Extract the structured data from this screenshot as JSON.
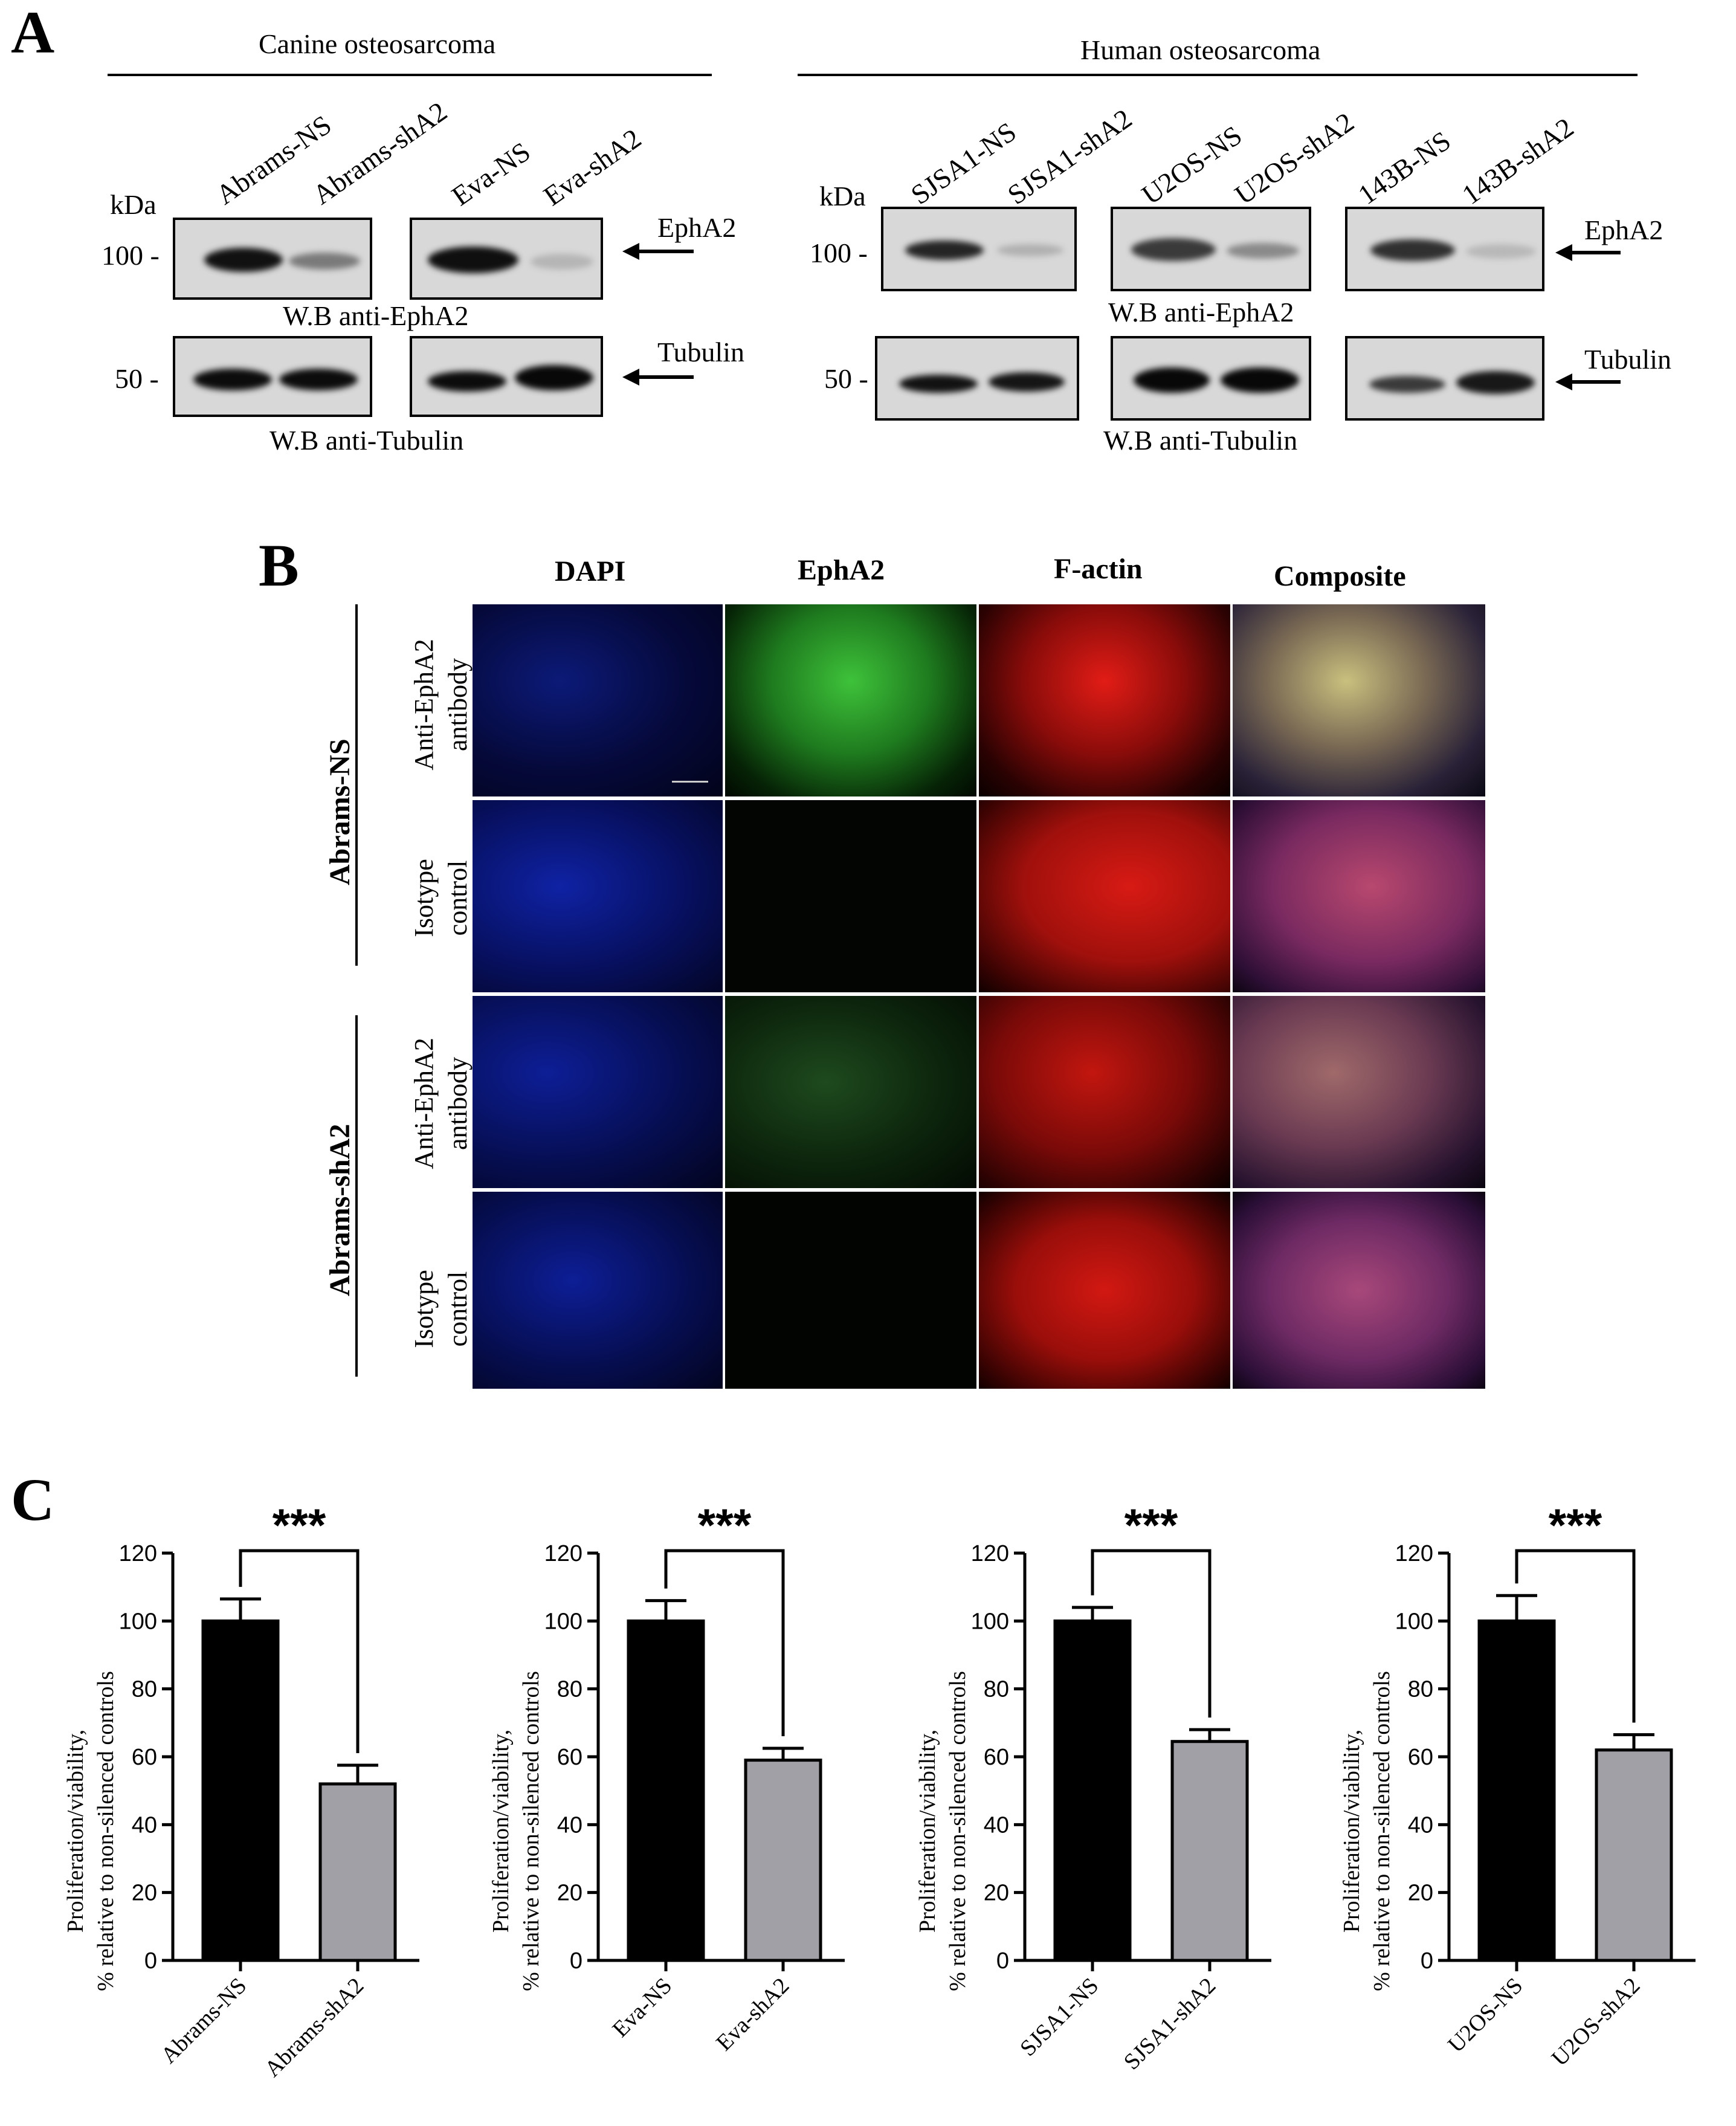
{
  "panel_a": {
    "letter": "A",
    "canine_header": "Canine osteosarcoma",
    "human_header": "Human osteosarcoma",
    "kda_label": "kDa",
    "mw_100": "100 -",
    "mw_50": "50 -",
    "lanes_canine": [
      "Abrams-NS",
      "Abrams-shA2",
      "Eva-NS",
      "Eva-shA2"
    ],
    "lanes_human": [
      "SJSA1-NS",
      "SJSA1-shA2",
      "U2OS-NS",
      "U2OS-shA2",
      "143B-NS",
      "143B-shA2"
    ],
    "epha2_label": "EphA2",
    "tubulin_label": "Tubulin",
    "wb_epha2": "W.B anti-EphA2",
    "wb_tubulin": "W.B anti-Tubulin"
  },
  "panel_b": {
    "letter": "B",
    "columns": [
      "DAPI",
      "EphA2",
      "F-actin",
      "Composite"
    ],
    "groups": [
      "Abrams-NS",
      "Abrams-shA2"
    ],
    "rows": [
      {
        "line1": "Anti-EphA2",
        "line2": "antibody"
      },
      {
        "line1": "Isotype",
        "line2": "control"
      },
      {
        "line1": "Anti-EphA2",
        "line2": "antibody"
      },
      {
        "line1": "Isotype",
        "line2": "control"
      }
    ]
  },
  "panel_c": {
    "letter": "C",
    "ylabel_line1": "Proliferation/viability,",
    "ylabel_line2": "% relative to non-silenced controls",
    "significance": "***"
  },
  "chart_data": [
    {
      "type": "bar",
      "categories": [
        "Abrams-NS",
        "Abrams-shA2"
      ],
      "values": [
        100,
        52
      ],
      "errors": [
        6.5,
        5.5
      ],
      "ylim": [
        0,
        120
      ],
      "yticks": [
        0,
        20,
        40,
        60,
        80,
        100,
        120
      ],
      "ylabel": "Proliferation/viability, % relative to non-silenced controls",
      "colors": [
        "#000000",
        "#a0a0a6"
      ]
    },
    {
      "type": "bar",
      "categories": [
        "Eva-NS",
        "Eva-shA2"
      ],
      "values": [
        100,
        59
      ],
      "errors": [
        6.0,
        3.5
      ],
      "ylim": [
        0,
        120
      ],
      "yticks": [
        0,
        20,
        40,
        60,
        80,
        100,
        120
      ],
      "ylabel": "Proliferation/viability, % relative to non-silenced controls",
      "colors": [
        "#000000",
        "#a0a0a6"
      ]
    },
    {
      "type": "bar",
      "categories": [
        "SJSA1-NS",
        "SJSA1-shA2"
      ],
      "values": [
        100,
        64.5
      ],
      "errors": [
        4.0,
        3.5
      ],
      "ylim": [
        0,
        120
      ],
      "yticks": [
        0,
        20,
        40,
        60,
        80,
        100,
        120
      ],
      "ylabel": "Proliferation/viability, % relative to non-silenced controls",
      "colors": [
        "#000000",
        "#a0a0a6"
      ]
    },
    {
      "type": "bar",
      "categories": [
        "U2OS-NS",
        "U2OS-shA2"
      ],
      "values": [
        100,
        62
      ],
      "errors": [
        7.5,
        4.5
      ],
      "ylim": [
        0,
        120
      ],
      "yticks": [
        0,
        20,
        40,
        60,
        80,
        100,
        120
      ],
      "ylabel": "Proliferation/viability, % relative to non-silenced controls",
      "colors": [
        "#000000",
        "#a0a0a6"
      ]
    }
  ]
}
